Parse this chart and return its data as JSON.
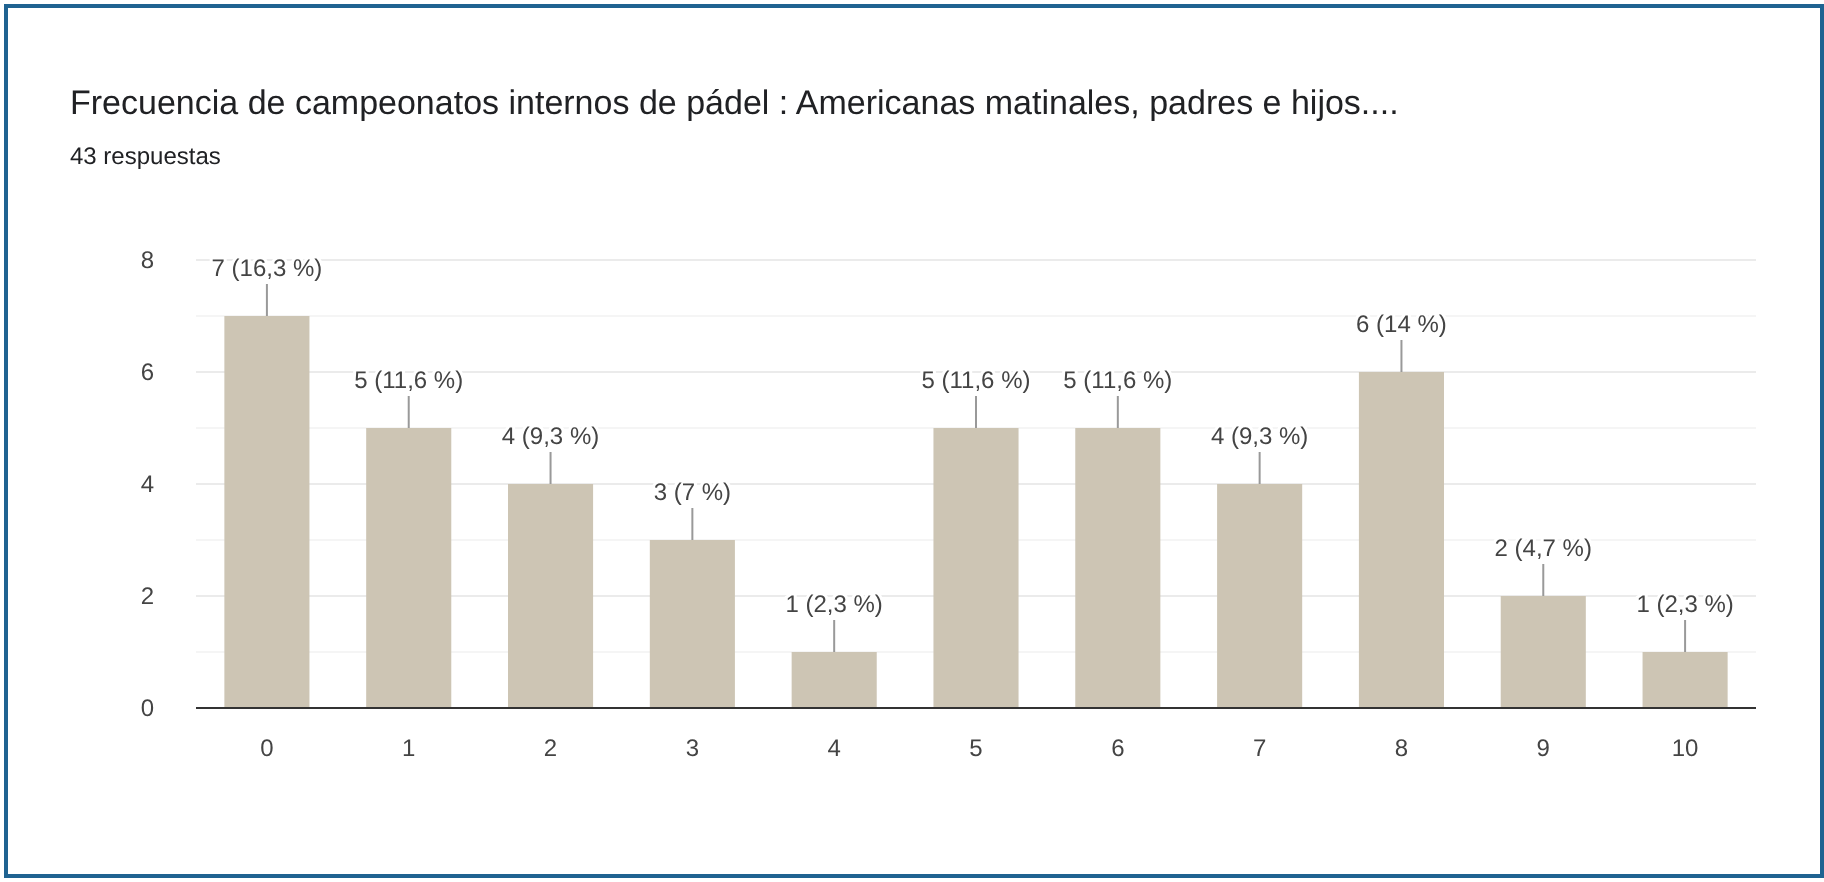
{
  "chart_data": {
    "type": "bar",
    "title": "Frecuencia de campeonatos internos de pádel : Americanas matinales, padres e hijos....",
    "subtitle": "43 respuestas",
    "categories": [
      "0",
      "1",
      "2",
      "3",
      "4",
      "5",
      "6",
      "7",
      "8",
      "9",
      "10"
    ],
    "values": [
      7,
      5,
      4,
      3,
      1,
      5,
      5,
      4,
      6,
      2,
      1
    ],
    "value_labels": [
      "7 (16,3 %)",
      "5 (11,6 %)",
      "4 (9,3 %)",
      "3 (7 %)",
      "1 (2,3 %)",
      "5 (11,6 %)",
      "5 (11,6 %)",
      "4 (9,3 %)",
      "6 (14 %)",
      "2 (4,7 %)",
      "1 (2,3 %)"
    ],
    "color": "#cdc5b4",
    "ylim": [
      0,
      8
    ],
    "yticks": [
      0,
      {
        "value": 1,
        "label": null
      },
      2,
      {
        "value": 3,
        "label": null
      },
      4,
      {
        "value": 5,
        "label": null
      },
      6,
      {
        "value": 7,
        "label": null
      },
      8
    ],
    "grid": "y"
  }
}
